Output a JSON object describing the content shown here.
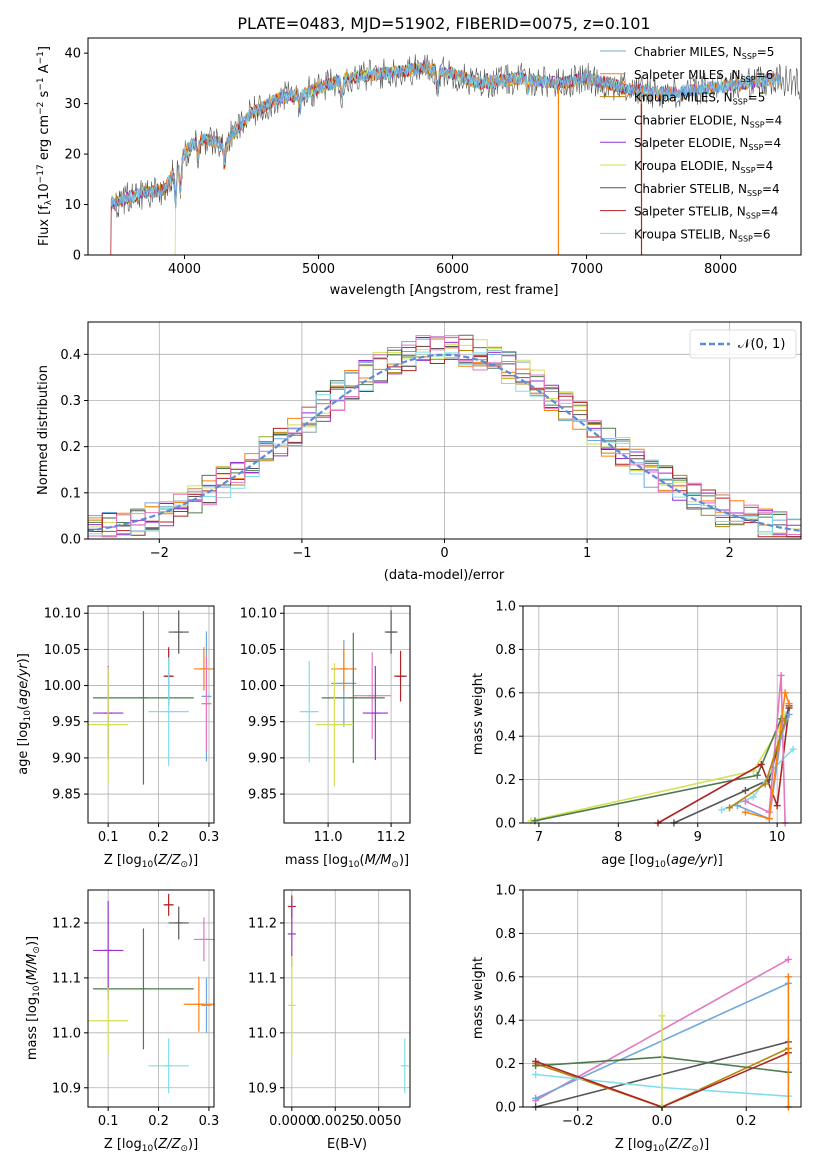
{
  "colors": {
    "chabrier_miles": "#6fa8dc",
    "salpeter_miles": "#ff7f0e",
    "kroupa_miles": "#b8860b",
    "chabrier_elodie": "#4c7c4c",
    "salpeter_elodie": "#9932cc",
    "kroupa_elodie": "#d4e157",
    "chabrier_stelib": "#555555",
    "salpeter_stelib": "#b22222",
    "kroupa_stelib": "#80deea",
    "pink": "#e377c2",
    "blue": "#5b8bd9",
    "normal": "#5b8bd9"
  },
  "chart_data": [
    {
      "type": "line",
      "title": "PLATE=0483, MJD=51902, FIBERID=0075, z=0.101",
      "xlabel": "wavelength [Angstrom, rest frame]",
      "ylabel": "Flux [f_λ10^-17 erg cm^-2 s^-1 A^-1]",
      "xlim": [
        3280,
        8600
      ],
      "ylim": [
        0,
        43
      ],
      "xticks": [
        "4000",
        "5000",
        "6000",
        "7000",
        "8000"
      ],
      "yticks": [
        "0",
        "10",
        "20",
        "30",
        "40"
      ],
      "legend_position": "lower-right",
      "series": [
        {
          "name": "Chabrier MILES, N_SSP=5",
          "color_key": "chabrier_miles"
        },
        {
          "name": "Salpeter MILES, N_SSP=6",
          "color_key": "salpeter_miles"
        },
        {
          "name": "Kroupa MILES, N_SSP=5",
          "color_key": "kroupa_miles"
        },
        {
          "name": "Chabrier ELODIE, N_SSP=4",
          "color_key": "chabrier_elodie"
        },
        {
          "name": "Salpeter ELODIE, N_SSP=4",
          "color_key": "salpeter_elodie"
        },
        {
          "name": "Kroupa ELODIE, N_SSP=4",
          "color_key": "kroupa_elodie"
        },
        {
          "name": "Chabrier STELIB, N_SSP=4",
          "color_key": "chabrier_stelib"
        },
        {
          "name": "Salpeter STELIB, N_SSP=4",
          "color_key": "salpeter_stelib"
        },
        {
          "name": "Kroupa STELIB, N_SSP=6",
          "color_key": "kroupa_stelib"
        }
      ],
      "continuum": {
        "x": [
          3450,
          3550,
          3650,
          3750,
          3850,
          3950,
          4050,
          4150,
          4300,
          4500,
          4700,
          4900,
          5200,
          5500,
          5800,
          6000,
          6200,
          6500,
          6800,
          7000,
          7300,
          7600,
          7900,
          8200,
          8400,
          8590
        ],
        "y": [
          10,
          11,
          12,
          12.5,
          13,
          18,
          22,
          23,
          22,
          28,
          31,
          32,
          35,
          36,
          37,
          36,
          34,
          35,
          34,
          35,
          33,
          32,
          33,
          34,
          35,
          34
        ]
      }
    },
    {
      "type": "line",
      "xlabel": "(data-model)/error",
      "ylabel": "Normed distribution",
      "xlim": [
        -2.5,
        2.5
      ],
      "ylim": [
        0,
        0.47
      ],
      "xticks": [
        "−2",
        "−1",
        "0",
        "1",
        "2"
      ],
      "yticks": [
        "0.0",
        "0.1",
        "0.2",
        "0.3",
        "0.4"
      ],
      "legend": "𝒩(0, 1)",
      "legend_position": "top-right",
      "bins": [
        -2.5,
        -2.4,
        -2.3,
        -2.2,
        -2.1,
        -2.0,
        -1.9,
        -1.8,
        -1.7,
        -1.6,
        -1.5,
        -1.4,
        -1.3,
        -1.2,
        -1.1,
        -1.0,
        -0.9,
        -0.8,
        -0.7,
        -0.6,
        -0.5,
        -0.4,
        -0.3,
        -0.2,
        -0.1,
        0.0,
        0.1,
        0.2,
        0.3,
        0.4,
        0.5,
        0.6,
        0.7,
        0.8,
        0.9,
        1.0,
        1.1,
        1.2,
        1.3,
        1.4,
        1.5,
        1.6,
        1.7,
        1.8,
        1.9,
        2.0,
        2.1,
        2.2,
        2.3,
        2.4,
        2.5
      ],
      "normal": {
        "mean": 0,
        "sd": 1
      }
    },
    {
      "type": "scatter",
      "xlabel": "Z [log10(Z/Z⊙)]",
      "ylabel": "age  [log10(age/yr)]",
      "xlim": [
        0.06,
        0.31
      ],
      "ylim": [
        9.81,
        10.11
      ],
      "xticks": [
        "0.1",
        "0.2",
        "0.3"
      ],
      "yticks": [
        "9.85",
        "9.90",
        "9.95",
        "10.00",
        "10.05",
        "10.10"
      ],
      "points": [
        {
          "c": "chabrier_miles",
          "x": 0.295,
          "y": 9.985,
          "xe": 0.01,
          "ye": 0.09
        },
        {
          "c": "salpeter_miles",
          "x": 0.29,
          "y": 10.023,
          "xe": 0.02,
          "ye": 0.03
        },
        {
          "c": "pink",
          "x": 0.295,
          "y": 9.975,
          "xe": 0.01,
          "ye": 0.065
        },
        {
          "c": "chabrier_elodie",
          "x": 0.17,
          "y": 9.983,
          "xe": 0.1,
          "ye": 0.12
        },
        {
          "c": "salpeter_elodie",
          "x": 0.1,
          "y": 9.962,
          "xe": 0.03,
          "ye": 0.065
        },
        {
          "c": "kroupa_elodie",
          "x": 0.1,
          "y": 9.946,
          "xe": 0.04,
          "ye": 0.08
        },
        {
          "c": "chabrier_stelib",
          "x": 0.24,
          "y": 10.074,
          "xe": 0.02,
          "ye": 0.03
        },
        {
          "c": "salpeter_stelib",
          "x": 0.22,
          "y": 10.013,
          "xe": 0.01,
          "ye": 0.04
        },
        {
          "c": "kroupa_stelib",
          "x": 0.22,
          "y": 9.964,
          "xe": 0.04,
          "ye": 0.075
        }
      ]
    },
    {
      "type": "scatter",
      "xlabel": "mass [log10(M/M⊙)]",
      "ylabel": "",
      "xlim": [
        10.86,
        11.26
      ],
      "ylim": [
        9.81,
        10.11
      ],
      "xticks": [
        "11.0",
        "11.2"
      ],
      "yticks": [
        "9.85",
        "9.90",
        "9.95",
        "10.00",
        "10.05",
        "10.10"
      ],
      "points": [
        {
          "c": "chabrier_miles",
          "x": 11.05,
          "y": 10.003,
          "xe": 0.04,
          "ye": 0.06
        },
        {
          "c": "salpeter_miles",
          "x": 11.05,
          "y": 10.023,
          "xe": 0.04,
          "ye": 0.03
        },
        {
          "c": "pink",
          "x": 11.14,
          "y": 9.986,
          "xe": 0.06,
          "ye": 0.06
        },
        {
          "c": "chabrier_elodie",
          "x": 11.08,
          "y": 9.983,
          "xe": 0.1,
          "ye": 0.09
        },
        {
          "c": "salpeter_elodie",
          "x": 11.15,
          "y": 9.962,
          "xe": 0.04,
          "ye": 0.065
        },
        {
          "c": "kroupa_elodie",
          "x": 11.02,
          "y": 9.946,
          "xe": 0.06,
          "ye": 0.085
        },
        {
          "c": "chabrier_stelib",
          "x": 11.2,
          "y": 10.074,
          "xe": 0.02,
          "ye": 0.03
        },
        {
          "c": "salpeter_stelib",
          "x": 11.23,
          "y": 10.013,
          "xe": 0.02,
          "ye": 0.035
        },
        {
          "c": "kroupa_stelib",
          "x": 10.94,
          "y": 9.964,
          "xe": 0.03,
          "ye": 0.07
        }
      ]
    },
    {
      "type": "line",
      "xlabel": "age  [log10(age/yr)]",
      "ylabel": "mass weight",
      "xlim": [
        6.8,
        10.3
      ],
      "ylim": [
        0,
        1
      ],
      "xticks": [
        "7",
        "8",
        "9",
        "10"
      ],
      "yticks": [
        "0.0",
        "0.2",
        "0.4",
        "0.6",
        "0.8",
        "1.0"
      ],
      "series": [
        {
          "c": "kroupa_elodie",
          "x": [
            6.9,
            9.7,
            10.0,
            10.1
          ],
          "y": [
            0.01,
            0.24,
            0.42,
            0.5
          ]
        },
        {
          "c": "chabrier_elodie",
          "x": [
            6.95,
            9.75,
            10.05
          ],
          "y": [
            0.01,
            0.22,
            0.48
          ]
        },
        {
          "c": "salpeter_stelib",
          "x": [
            8.5,
            9.8,
            10.0,
            10.15
          ],
          "y": [
            0.0,
            0.27,
            0.08,
            0.53
          ]
        },
        {
          "c": "chabrier_stelib",
          "x": [
            8.7,
            9.6,
            9.9,
            10.15
          ],
          "y": [
            0.0,
            0.15,
            0.2,
            0.54
          ]
        },
        {
          "c": "kroupa_stelib",
          "x": [
            9.3,
            9.7,
            9.95,
            10.2
          ],
          "y": [
            0.06,
            0.12,
            0.25,
            0.34
          ]
        },
        {
          "c": "pink",
          "x": [
            9.6,
            9.9,
            10.05,
            10.1
          ],
          "y": [
            0.1,
            0.05,
            0.68,
            0.0
          ]
        },
        {
          "c": "chabrier_miles",
          "x": [
            9.5,
            9.9,
            10.05,
            10.15
          ],
          "y": [
            0.08,
            0.02,
            0.4,
            0.5
          ]
        },
        {
          "c": "salpeter_miles",
          "x": [
            9.6,
            9.9,
            10.1,
            10.15
          ],
          "y": [
            0.05,
            0.02,
            0.6,
            0.55
          ]
        },
        {
          "c": "kroupa_miles",
          "x": [
            9.4,
            9.85,
            10.1
          ],
          "y": [
            0.07,
            0.18,
            0.47
          ]
        }
      ]
    },
    {
      "type": "scatter",
      "xlabel": "Z [log10(Z/Z⊙)]",
      "ylabel": "mass [log10(M/M⊙)]",
      "xlim": [
        0.06,
        0.31
      ],
      "ylim": [
        10.865,
        11.26
      ],
      "xticks": [
        "0.1",
        "0.2",
        "0.3"
      ],
      "yticks": [
        "10.9",
        "11.0",
        "11.1",
        "11.2"
      ],
      "points": [
        {
          "c": "chabrier_miles",
          "x": 0.295,
          "y": 11.05,
          "xe": 0.01,
          "ye": 0.05
        },
        {
          "c": "salpeter_miles",
          "x": 0.28,
          "y": 11.052,
          "xe": 0.03,
          "ye": 0.05
        },
        {
          "c": "pink",
          "x": 0.29,
          "y": 11.17,
          "xe": 0.02,
          "ye": 0.04
        },
        {
          "c": "chabrier_elodie",
          "x": 0.17,
          "y": 11.08,
          "xe": 0.1,
          "ye": 0.11
        },
        {
          "c": "salpeter_elodie",
          "x": 0.1,
          "y": 11.15,
          "xe": 0.03,
          "ye": 0.09
        },
        {
          "c": "kroupa_elodie",
          "x": 0.1,
          "y": 11.022,
          "xe": 0.04,
          "ye": 0.06
        },
        {
          "c": "chabrier_stelib",
          "x": 0.24,
          "y": 11.2,
          "xe": 0.02,
          "ye": 0.03
        },
        {
          "c": "salpeter_stelib",
          "x": 0.22,
          "y": 11.233,
          "xe": 0.01,
          "ye": 0.02
        },
        {
          "c": "kroupa_stelib",
          "x": 0.22,
          "y": 10.94,
          "xe": 0.04,
          "ye": 0.05
        }
      ]
    },
    {
      "type": "scatter",
      "xlabel": "E(B-V)",
      "ylabel": "",
      "xlim": [
        -0.00045,
        0.0068
      ],
      "ylim": [
        10.865,
        11.26
      ],
      "xticks": [
        "0.0000",
        "0.0025",
        "0.0050"
      ],
      "yticks": [
        "10.9",
        "11.0",
        "11.1",
        "11.2"
      ],
      "points": [
        {
          "c": "salpeter_stelib",
          "x": 0.0,
          "y": 11.23,
          "xe": 0,
          "ye": 0.02
        },
        {
          "c": "salpeter_elodie",
          "x": 0.0,
          "y": 11.18,
          "xe": 0,
          "ye": 0.06
        },
        {
          "c": "kroupa_elodie",
          "x": 0.0,
          "y": 11.05,
          "xe": 0,
          "ye": 0.09
        },
        {
          "c": "kroupa_stelib",
          "x": 0.0065,
          "y": 10.94,
          "xe": 0,
          "ye": 0.05
        }
      ]
    },
    {
      "type": "line",
      "xlabel": "Z [log10(Z/Z⊙)]",
      "ylabel": "mass weight",
      "xlim": [
        -0.33,
        0.33
      ],
      "ylim": [
        0,
        1
      ],
      "xticks": [
        "−0.2",
        "0.0",
        "0.2"
      ],
      "yticks": [
        "0.0",
        "0.2",
        "0.4",
        "0.6",
        "0.8",
        "1.0"
      ],
      "series": [
        {
          "c": "pink",
          "x": [
            -0.3,
            0.3
          ],
          "y": [
            0.03,
            0.68
          ]
        },
        {
          "c": "chabrier_miles",
          "x": [
            -0.3,
            0.3
          ],
          "y": [
            0.04,
            0.57
          ]
        },
        {
          "c": "chabrier_stelib",
          "x": [
            -0.3,
            0.3
          ],
          "y": [
            0.0,
            0.3
          ]
        },
        {
          "c": "kroupa_miles",
          "x": [
            -0.3,
            0.0,
            0.3
          ],
          "y": [
            0.2,
            0.0,
            0.27
          ]
        },
        {
          "c": "chabrier_elodie",
          "x": [
            -0.3,
            0.0,
            0.3
          ],
          "y": [
            0.19,
            0.23,
            0.16
          ]
        },
        {
          "c": "kroupa_stelib",
          "x": [
            -0.3,
            0.0,
            0.3
          ],
          "y": [
            0.15,
            0.09,
            0.05
          ]
        },
        {
          "c": "salpeter_stelib",
          "x": [
            -0.3,
            0.0,
            0.3
          ],
          "y": [
            0.21,
            0.0,
            0.25
          ]
        },
        {
          "c": "kroupa_elodie",
          "x": [
            0.0,
            0.0
          ],
          "y": [
            0.0,
            0.42
          ]
        },
        {
          "c": "salpeter_miles",
          "x": [
            0.3,
            0.3
          ],
          "y": [
            0.0,
            0.6
          ]
        }
      ]
    }
  ]
}
